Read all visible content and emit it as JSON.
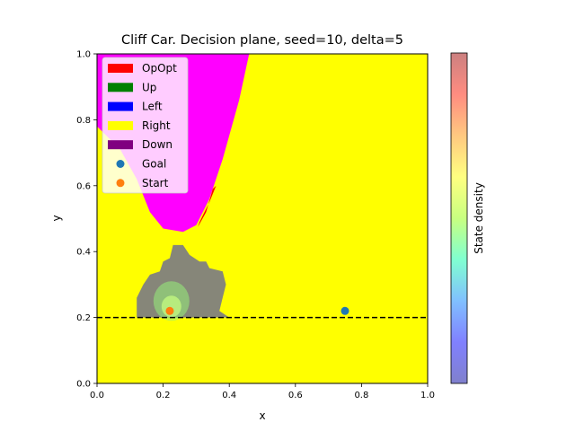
{
  "chart_data": {
    "type": "heatmap",
    "title": "Cliff Car. Decision plane, seed=10, delta=5",
    "xlabel": "x",
    "ylabel": "y",
    "xlim": [
      0.0,
      1.0
    ],
    "ylim": [
      0.0,
      1.0
    ],
    "xticks": [
      "0.0",
      "0.2",
      "0.4",
      "0.6",
      "0.8",
      "1.0"
    ],
    "yticks": [
      "0.0",
      "0.2",
      "0.4",
      "0.6",
      "0.8",
      "1.0"
    ],
    "grid": false,
    "legend_position": "top-left",
    "legend": [
      {
        "label": "OpOpt",
        "kind": "patch",
        "color": "#ff0000"
      },
      {
        "label": "Up",
        "kind": "patch",
        "color": "#008000"
      },
      {
        "label": "Left",
        "kind": "patch",
        "color": "#0000ff"
      },
      {
        "label": "Right",
        "kind": "patch",
        "color": "#ffff00"
      },
      {
        "label": "Down",
        "kind": "patch",
        "color": "#800080"
      },
      {
        "label": "Goal",
        "kind": "marker",
        "color": "#1f77b4"
      },
      {
        "label": "Start",
        "kind": "marker",
        "color": "#ff7f0e"
      }
    ],
    "background_action": {
      "label": "Right",
      "color": "#ffff00"
    },
    "regions": [
      {
        "label": "Down",
        "display_color": "#ff00ff",
        "boundary": [
          [
            0.0,
            0.78
          ],
          [
            0.0,
            1.0
          ],
          [
            0.46,
            1.0
          ],
          [
            0.43,
            0.86
          ],
          [
            0.38,
            0.68
          ],
          [
            0.34,
            0.56
          ],
          [
            0.3,
            0.48
          ],
          [
            0.26,
            0.46
          ],
          [
            0.2,
            0.47
          ],
          [
            0.16,
            0.52
          ],
          [
            0.12,
            0.62
          ],
          [
            0.07,
            0.71
          ]
        ]
      },
      {
        "label": "OpOpt",
        "display_color": "#ff0000",
        "boundary": [
          [
            0.305,
            0.475
          ],
          [
            0.33,
            0.52
          ],
          [
            0.35,
            0.59
          ],
          [
            0.36,
            0.6
          ],
          [
            0.34,
            0.55
          ],
          [
            0.31,
            0.49
          ]
        ]
      }
    ],
    "cliff_line_y": 0.2,
    "goal": {
      "x": 0.75,
      "y": 0.22
    },
    "start": {
      "x": 0.22,
      "y": 0.22
    },
    "state_density": {
      "label": "State density",
      "cloud_color": "#808080",
      "core_color": "#98f07a",
      "boundary": [
        [
          0.12,
          0.2
        ],
        [
          0.12,
          0.26
        ],
        [
          0.14,
          0.3
        ],
        [
          0.16,
          0.33
        ],
        [
          0.19,
          0.34
        ],
        [
          0.2,
          0.37
        ],
        [
          0.22,
          0.38
        ],
        [
          0.23,
          0.42
        ],
        [
          0.26,
          0.42
        ],
        [
          0.28,
          0.39
        ],
        [
          0.31,
          0.37
        ],
        [
          0.33,
          0.37
        ],
        [
          0.34,
          0.35
        ],
        [
          0.38,
          0.34
        ],
        [
          0.39,
          0.3
        ],
        [
          0.38,
          0.26
        ],
        [
          0.37,
          0.22
        ],
        [
          0.4,
          0.2
        ]
      ],
      "core_center": {
        "x": 0.225,
        "y": 0.25
      },
      "colorbar": [
        "#8080cc",
        "#8080ff",
        "#80c0ff",
        "#80ffd0",
        "#c8ff80",
        "#ffff80",
        "#ffc880",
        "#ff8c80",
        "#cc8080"
      ]
    }
  }
}
